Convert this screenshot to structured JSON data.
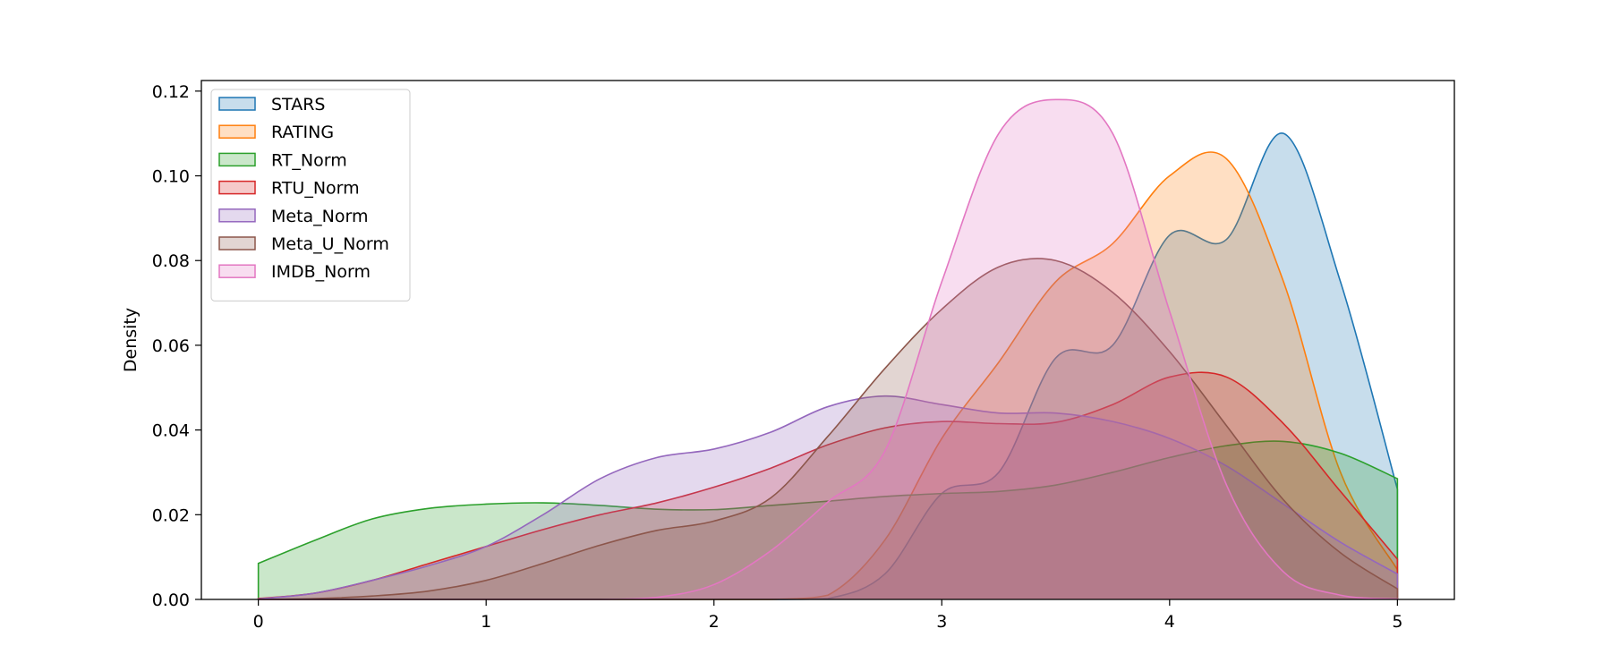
{
  "chart_data": {
    "type": "area",
    "title": "",
    "xlabel": "",
    "ylabel": "Density",
    "xlim": [
      -0.25,
      5.25
    ],
    "ylim": [
      0,
      0.1225
    ],
    "xticks": [
      0,
      1,
      2,
      3,
      4,
      5
    ],
    "xtick_labels": [
      "0",
      "1",
      "2",
      "3",
      "4",
      "5"
    ],
    "yticks": [
      0,
      0.02,
      0.04,
      0.06,
      0.08,
      0.1,
      0.12
    ],
    "ytick_labels": [
      "0.00",
      "0.02",
      "0.04",
      "0.06",
      "0.08",
      "0.10",
      "0.12"
    ],
    "grid": false,
    "legend_position": "top-left",
    "fill_alpha": 0.25,
    "x": [
      0,
      0.25,
      0.5,
      0.75,
      1.0,
      1.25,
      1.5,
      1.75,
      2.0,
      2.25,
      2.5,
      2.75,
      3.0,
      3.25,
      3.5,
      3.75,
      4.0,
      4.25,
      4.5,
      4.75,
      5.0
    ],
    "series": [
      {
        "name": "STARS",
        "color": "#1f77b4",
        "values": [
          0,
          0,
          0,
          0,
          0,
          0,
          0,
          0,
          0,
          0,
          0.0002,
          0.006,
          0.025,
          0.03,
          0.057,
          0.06,
          0.086,
          0.085,
          0.11,
          0.075,
          0.026
        ]
      },
      {
        "name": "RATING",
        "color": "#ff7f0e",
        "values": [
          0,
          0,
          0,
          0,
          0,
          0,
          0,
          0,
          0,
          0,
          0.001,
          0.014,
          0.038,
          0.056,
          0.075,
          0.084,
          0.1,
          0.104,
          0.075,
          0.03,
          0.007
        ]
      },
      {
        "name": "RT_Norm",
        "color": "#2ca02c",
        "values": [
          0.0085,
          0.014,
          0.019,
          0.0215,
          0.0225,
          0.0228,
          0.0222,
          0.0213,
          0.0212,
          0.0222,
          0.0232,
          0.0243,
          0.025,
          0.0255,
          0.027,
          0.03,
          0.0335,
          0.0363,
          0.0373,
          0.0345,
          0.0285
        ]
      },
      {
        "name": "RTU_Norm",
        "color": "#d62728",
        "values": [
          0.0002,
          0.0015,
          0.0045,
          0.0085,
          0.0125,
          0.0165,
          0.02,
          0.0228,
          0.0265,
          0.031,
          0.0365,
          0.0405,
          0.042,
          0.0415,
          0.0418,
          0.046,
          0.0525,
          0.0525,
          0.0415,
          0.0255,
          0.0095
        ]
      },
      {
        "name": "Meta_Norm",
        "color": "#9467bd",
        "values": [
          0.0001,
          0.0015,
          0.0045,
          0.008,
          0.0125,
          0.02,
          0.0285,
          0.0335,
          0.0355,
          0.0395,
          0.0455,
          0.048,
          0.046,
          0.044,
          0.044,
          0.042,
          0.038,
          0.0315,
          0.0225,
          0.0135,
          0.006
        ]
      },
      {
        "name": "Meta_U_Norm",
        "color": "#8c564b",
        "values": [
          0,
          0.0002,
          0.0008,
          0.002,
          0.0045,
          0.0085,
          0.0128,
          0.0163,
          0.0185,
          0.024,
          0.0385,
          0.0545,
          0.0685,
          0.0785,
          0.08,
          0.0725,
          0.0585,
          0.041,
          0.0235,
          0.011,
          0.0025
        ]
      },
      {
        "name": "IMDB_Norm",
        "color": "#e377c2",
        "values": [
          0,
          0,
          0,
          0,
          0,
          0,
          0,
          0.0005,
          0.0035,
          0.0115,
          0.023,
          0.035,
          0.075,
          0.11,
          0.118,
          0.11,
          0.068,
          0.027,
          0.0065,
          0.001,
          0.0001
        ]
      }
    ]
  }
}
